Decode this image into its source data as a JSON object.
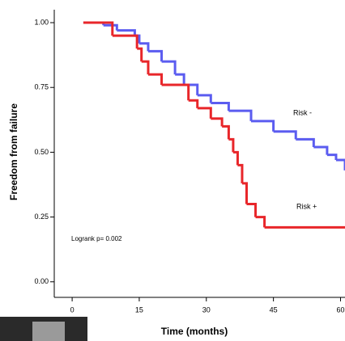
{
  "chart_data": {
    "type": "line",
    "drawstyle": "steps-post",
    "x_label": "Time (months)",
    "y_label": "Freedom from failure",
    "annotation": "Logrank p= 0.002",
    "xlim": [
      -4,
      61
    ],
    "ylim": [
      -0.06,
      1.05
    ],
    "xticks": [
      0,
      15,
      30,
      45,
      60
    ],
    "yticks": [
      {
        "value": 1,
        "label": "1.00"
      },
      {
        "value": 0.75,
        "label": "0.75"
      },
      {
        "value": 0.5,
        "label": "0.50"
      },
      {
        "value": 0.25,
        "label": "0.25"
      },
      {
        "value": 0,
        "label": "0.00"
      }
    ],
    "series": [
      {
        "name": "Risk -",
        "color": "#5b5cf0",
        "x": [
          2.5,
          7,
          10,
          14,
          15,
          17,
          20,
          23,
          25,
          28,
          31,
          35,
          40,
          45,
          50,
          54,
          57,
          59,
          61
        ],
        "values": [
          1.0,
          0.99,
          0.97,
          0.95,
          0.92,
          0.89,
          0.85,
          0.8,
          0.76,
          0.72,
          0.69,
          0.66,
          0.62,
          0.58,
          0.55,
          0.52,
          0.49,
          0.47,
          0.43
        ]
      },
      {
        "name": "Risk +",
        "color": "#e8262a",
        "x": [
          2.5,
          9,
          14.5,
          15.5,
          17,
          20,
          26,
          28,
          31,
          33.5,
          35,
          36,
          37,
          38,
          39,
          41,
          43,
          61
        ],
        "values": [
          1.0,
          0.95,
          0.9,
          0.85,
          0.8,
          0.76,
          0.7,
          0.67,
          0.63,
          0.6,
          0.55,
          0.5,
          0.45,
          0.38,
          0.3,
          0.25,
          0.21,
          0.21
        ]
      }
    ]
  }
}
